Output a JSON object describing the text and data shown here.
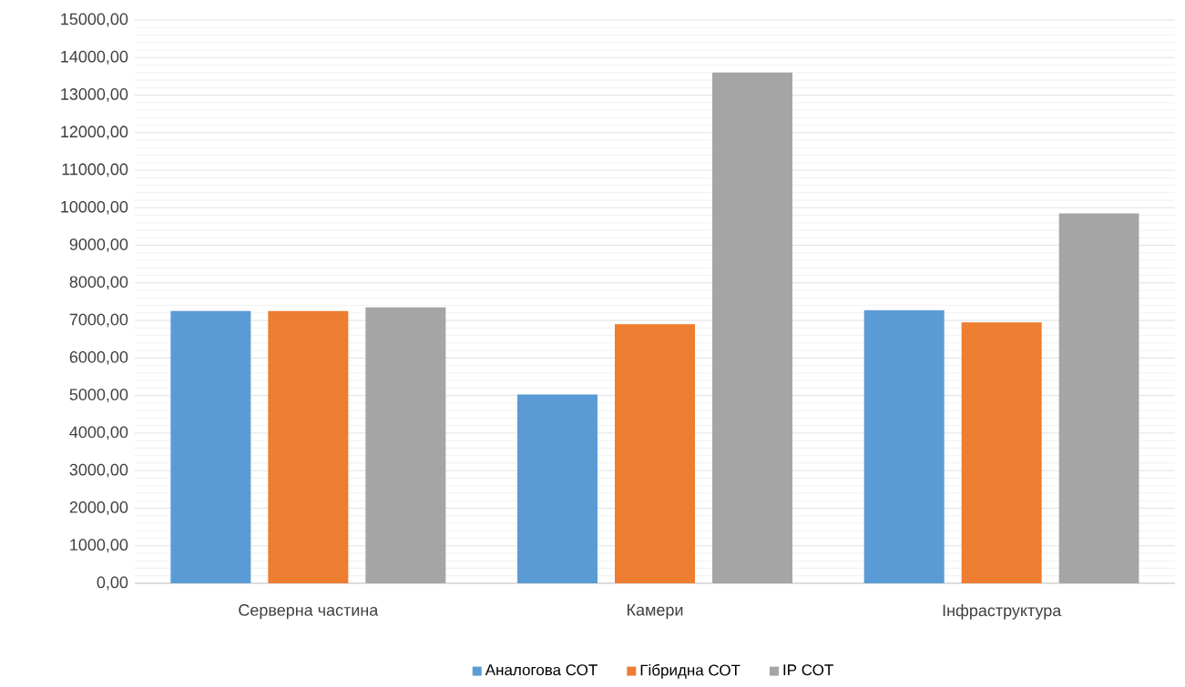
{
  "chart_data": {
    "type": "bar",
    "categories": [
      "Серверна частина",
      "Камери",
      "Інфраструктура"
    ],
    "series": [
      {
        "name": "Аналогова СОТ",
        "color": "#5b9bd5",
        "values": [
          7250,
          5030,
          7270
        ]
      },
      {
        "name": "Гібридна СОТ",
        "color": "#ed7d31",
        "values": [
          7250,
          6900,
          6950
        ]
      },
      {
        "name": "IP  СОТ",
        "color": "#a5a5a5",
        "values": [
          7350,
          13600,
          9850
        ]
      }
    ],
    "ylim": [
      0,
      15000
    ],
    "yticks": [
      {
        "value": 0,
        "label": "0,00"
      },
      {
        "value": 1000,
        "label": "1000,00"
      },
      {
        "value": 2000,
        "label": "2000,00"
      },
      {
        "value": 3000,
        "label": "3000,00"
      },
      {
        "value": 4000,
        "label": "4000,00"
      },
      {
        "value": 5000,
        "label": "5000,00"
      },
      {
        "value": 6000,
        "label": "6000,00"
      },
      {
        "value": 7000,
        "label": "7000,00"
      },
      {
        "value": 8000,
        "label": "8000,00"
      },
      {
        "value": 9000,
        "label": "9000,00"
      },
      {
        "value": 10000,
        "label": "10000,00"
      },
      {
        "value": 11000,
        "label": "11000,00"
      },
      {
        "value": 12000,
        "label": "12000,00"
      },
      {
        "value": 13000,
        "label": "13000,00"
      },
      {
        "value": 14000,
        "label": "14000,00"
      },
      {
        "value": 15000,
        "label": "15000,00"
      }
    ],
    "grid": "y",
    "legend": "bottom"
  }
}
